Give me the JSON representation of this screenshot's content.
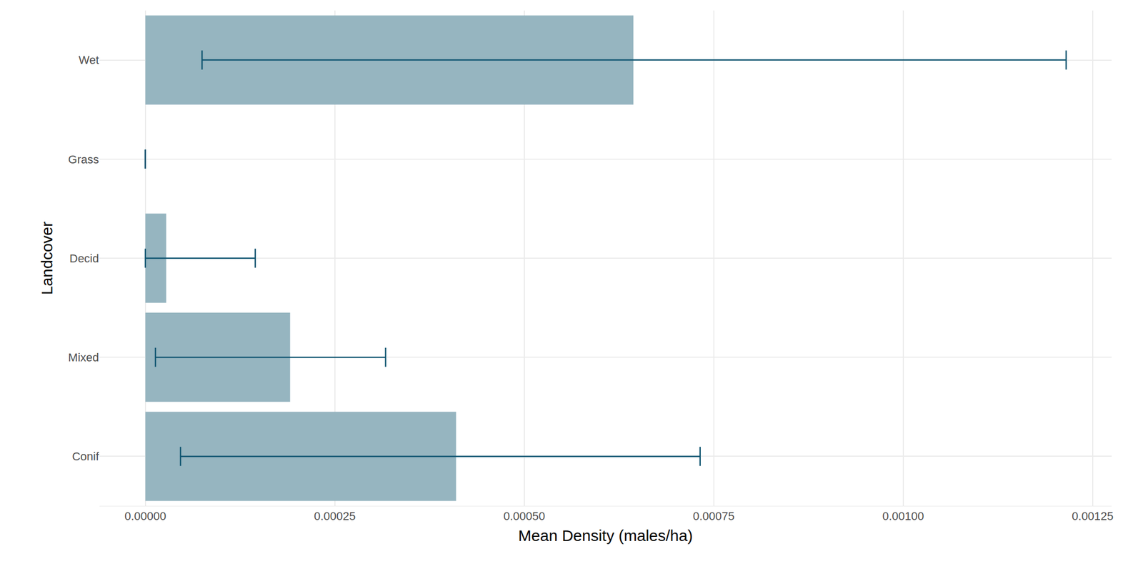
{
  "chart_data": {
    "type": "bar",
    "orientation": "horizontal",
    "x_label": "Mean Density (males/ha)",
    "y_label": "Landcover",
    "categories": [
      "Conif",
      "Mixed",
      "Decid",
      "Grass",
      "Wet"
    ],
    "values": [
      0.00041,
      0.000191,
      2.75e-05,
      0,
      0.000644
    ],
    "error_low": [
      4.64e-05,
      1.33e-05,
      0,
      0,
      7.48e-05
    ],
    "error_high": [
      0.000732,
      0.000317,
      0.000145,
      0,
      0.001215
    ],
    "color": "#96b5c0",
    "error_color": "#0e5470",
    "xlim": [
      -6.06e-05,
      0.001275
    ],
    "xticks": [
      {
        "value": 0,
        "label": "0.00000"
      },
      {
        "value": 0.00025,
        "label": "0.00025"
      },
      {
        "value": 0.0005,
        "label": "0.00050"
      },
      {
        "value": 0.00075,
        "label": "0.00075"
      },
      {
        "value": 0.001,
        "label": "0.00100"
      },
      {
        "value": 0.00125,
        "label": "0.00125"
      }
    ],
    "grid": true
  }
}
